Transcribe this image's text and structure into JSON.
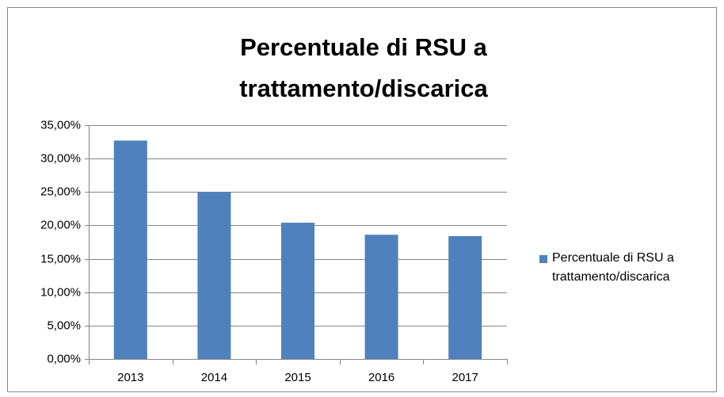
{
  "chart_data": {
    "type": "bar",
    "title": "Percentuale di RSU a trattamento/discarica",
    "categories": [
      "2013",
      "2014",
      "2015",
      "2016",
      "2017"
    ],
    "series": [
      {
        "name": "Percentuale di RSU a trattamento/discarica",
        "color": "#4f81bd",
        "values": [
          32.7,
          25.0,
          20.4,
          18.6,
          18.4
        ]
      }
    ],
    "ylim": [
      0,
      35
    ],
    "yticks": [
      {
        "value": 0,
        "label": "0,00%"
      },
      {
        "value": 5,
        "label": "5,00%"
      },
      {
        "value": 10,
        "label": "10,00%"
      },
      {
        "value": 15,
        "label": "15,00%"
      },
      {
        "value": 20,
        "label": "20,00%"
      },
      {
        "value": 25,
        "label": "25,00%"
      },
      {
        "value": 30,
        "label": "30,00%"
      },
      {
        "value": 35,
        "label": "35,00%"
      }
    ],
    "grid": true,
    "legend": "right"
  }
}
